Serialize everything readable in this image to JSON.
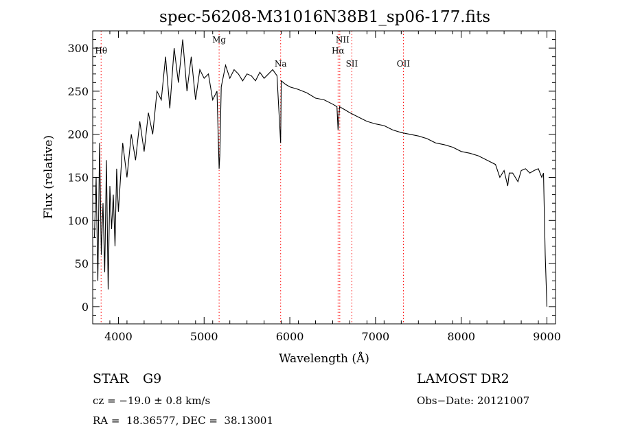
{
  "chart_data": {
    "type": "line",
    "title": "spec-56208-M31016N38B1_sp06-177.fits",
    "xlabel": "Wavelength (Å)",
    "ylabel": "Flux (relative)",
    "xlim": [
      3700,
      9100
    ],
    "ylim": [
      -20,
      320
    ],
    "xticks": [
      4000,
      5000,
      6000,
      7000,
      8000,
      9000
    ],
    "yticks": [
      0,
      50,
      100,
      150,
      200,
      250,
      300
    ],
    "grid": false,
    "line_color": "#000000",
    "marker_color": "#ff0000",
    "series": [
      {
        "x": [
          3720,
          3740,
          3760,
          3780,
          3800,
          3820,
          3840,
          3860,
          3880,
          3900,
          3920,
          3940,
          3960,
          3980,
          4000,
          4050,
          4100,
          4150,
          4200,
          4250,
          4300,
          4350,
          4400,
          4450,
          4500,
          4550,
          4600,
          4650,
          4700,
          4750,
          4800,
          4850,
          4900,
          4950,
          5000,
          5050,
          5100,
          5150,
          5175,
          5183,
          5200,
          5250,
          5300,
          5350,
          5400,
          5450,
          5500,
          5550,
          5600,
          5650,
          5700,
          5750,
          5800,
          5850,
          5893,
          5900,
          5950,
          6000,
          6100,
          6200,
          6300,
          6400,
          6500,
          6550,
          6563,
          6580,
          6650,
          6700,
          6800,
          6900,
          7000,
          7100,
          7200,
          7300,
          7400,
          7500,
          7600,
          7700,
          7800,
          7900,
          8000,
          8100,
          8200,
          8300,
          8400,
          8450,
          8500,
          8542,
          8560,
          8600,
          8662,
          8700,
          8750,
          8800,
          8850,
          8900,
          8940,
          8960,
          8980,
          9000
        ],
        "y": [
          80,
          150,
          30,
          190,
          60,
          120,
          40,
          170,
          20,
          140,
          90,
          130,
          70,
          160,
          110,
          190,
          150,
          200,
          170,
          215,
          180,
          225,
          200,
          250,
          240,
          290,
          230,
          300,
          260,
          310,
          250,
          290,
          240,
          275,
          265,
          270,
          240,
          250,
          160,
          175,
          255,
          280,
          265,
          275,
          270,
          262,
          270,
          268,
          262,
          272,
          265,
          270,
          275,
          268,
          190,
          262,
          258,
          255,
          252,
          248,
          242,
          240,
          235,
          232,
          205,
          232,
          228,
          225,
          220,
          215,
          212,
          210,
          205,
          202,
          200,
          198,
          195,
          190,
          188,
          185,
          180,
          178,
          175,
          170,
          165,
          150,
          158,
          140,
          155,
          155,
          145,
          158,
          160,
          155,
          158,
          160,
          150,
          155,
          60,
          0
        ]
      }
    ],
    "lines": [
      {
        "label": "Hθ",
        "x": 3798
      },
      {
        "label": "Mg",
        "x": 5175
      },
      {
        "label": "Na",
        "x": 5893
      },
      {
        "label": "NII",
        "x": 6583
      },
      {
        "label": "Hα",
        "x": 6563
      },
      {
        "label": "SII",
        "x": 6724
      },
      {
        "label": "OII",
        "x": 7325
      }
    ]
  },
  "info": {
    "class_label": "STAR",
    "subclass": "G9",
    "survey": "LAMOST DR2",
    "cz": "cz = −19.0 ± 0.8 km/s",
    "obs_date": "Obs−Date: 20121007",
    "coords": "RA =  18.36577, DEC =  38.13001"
  }
}
